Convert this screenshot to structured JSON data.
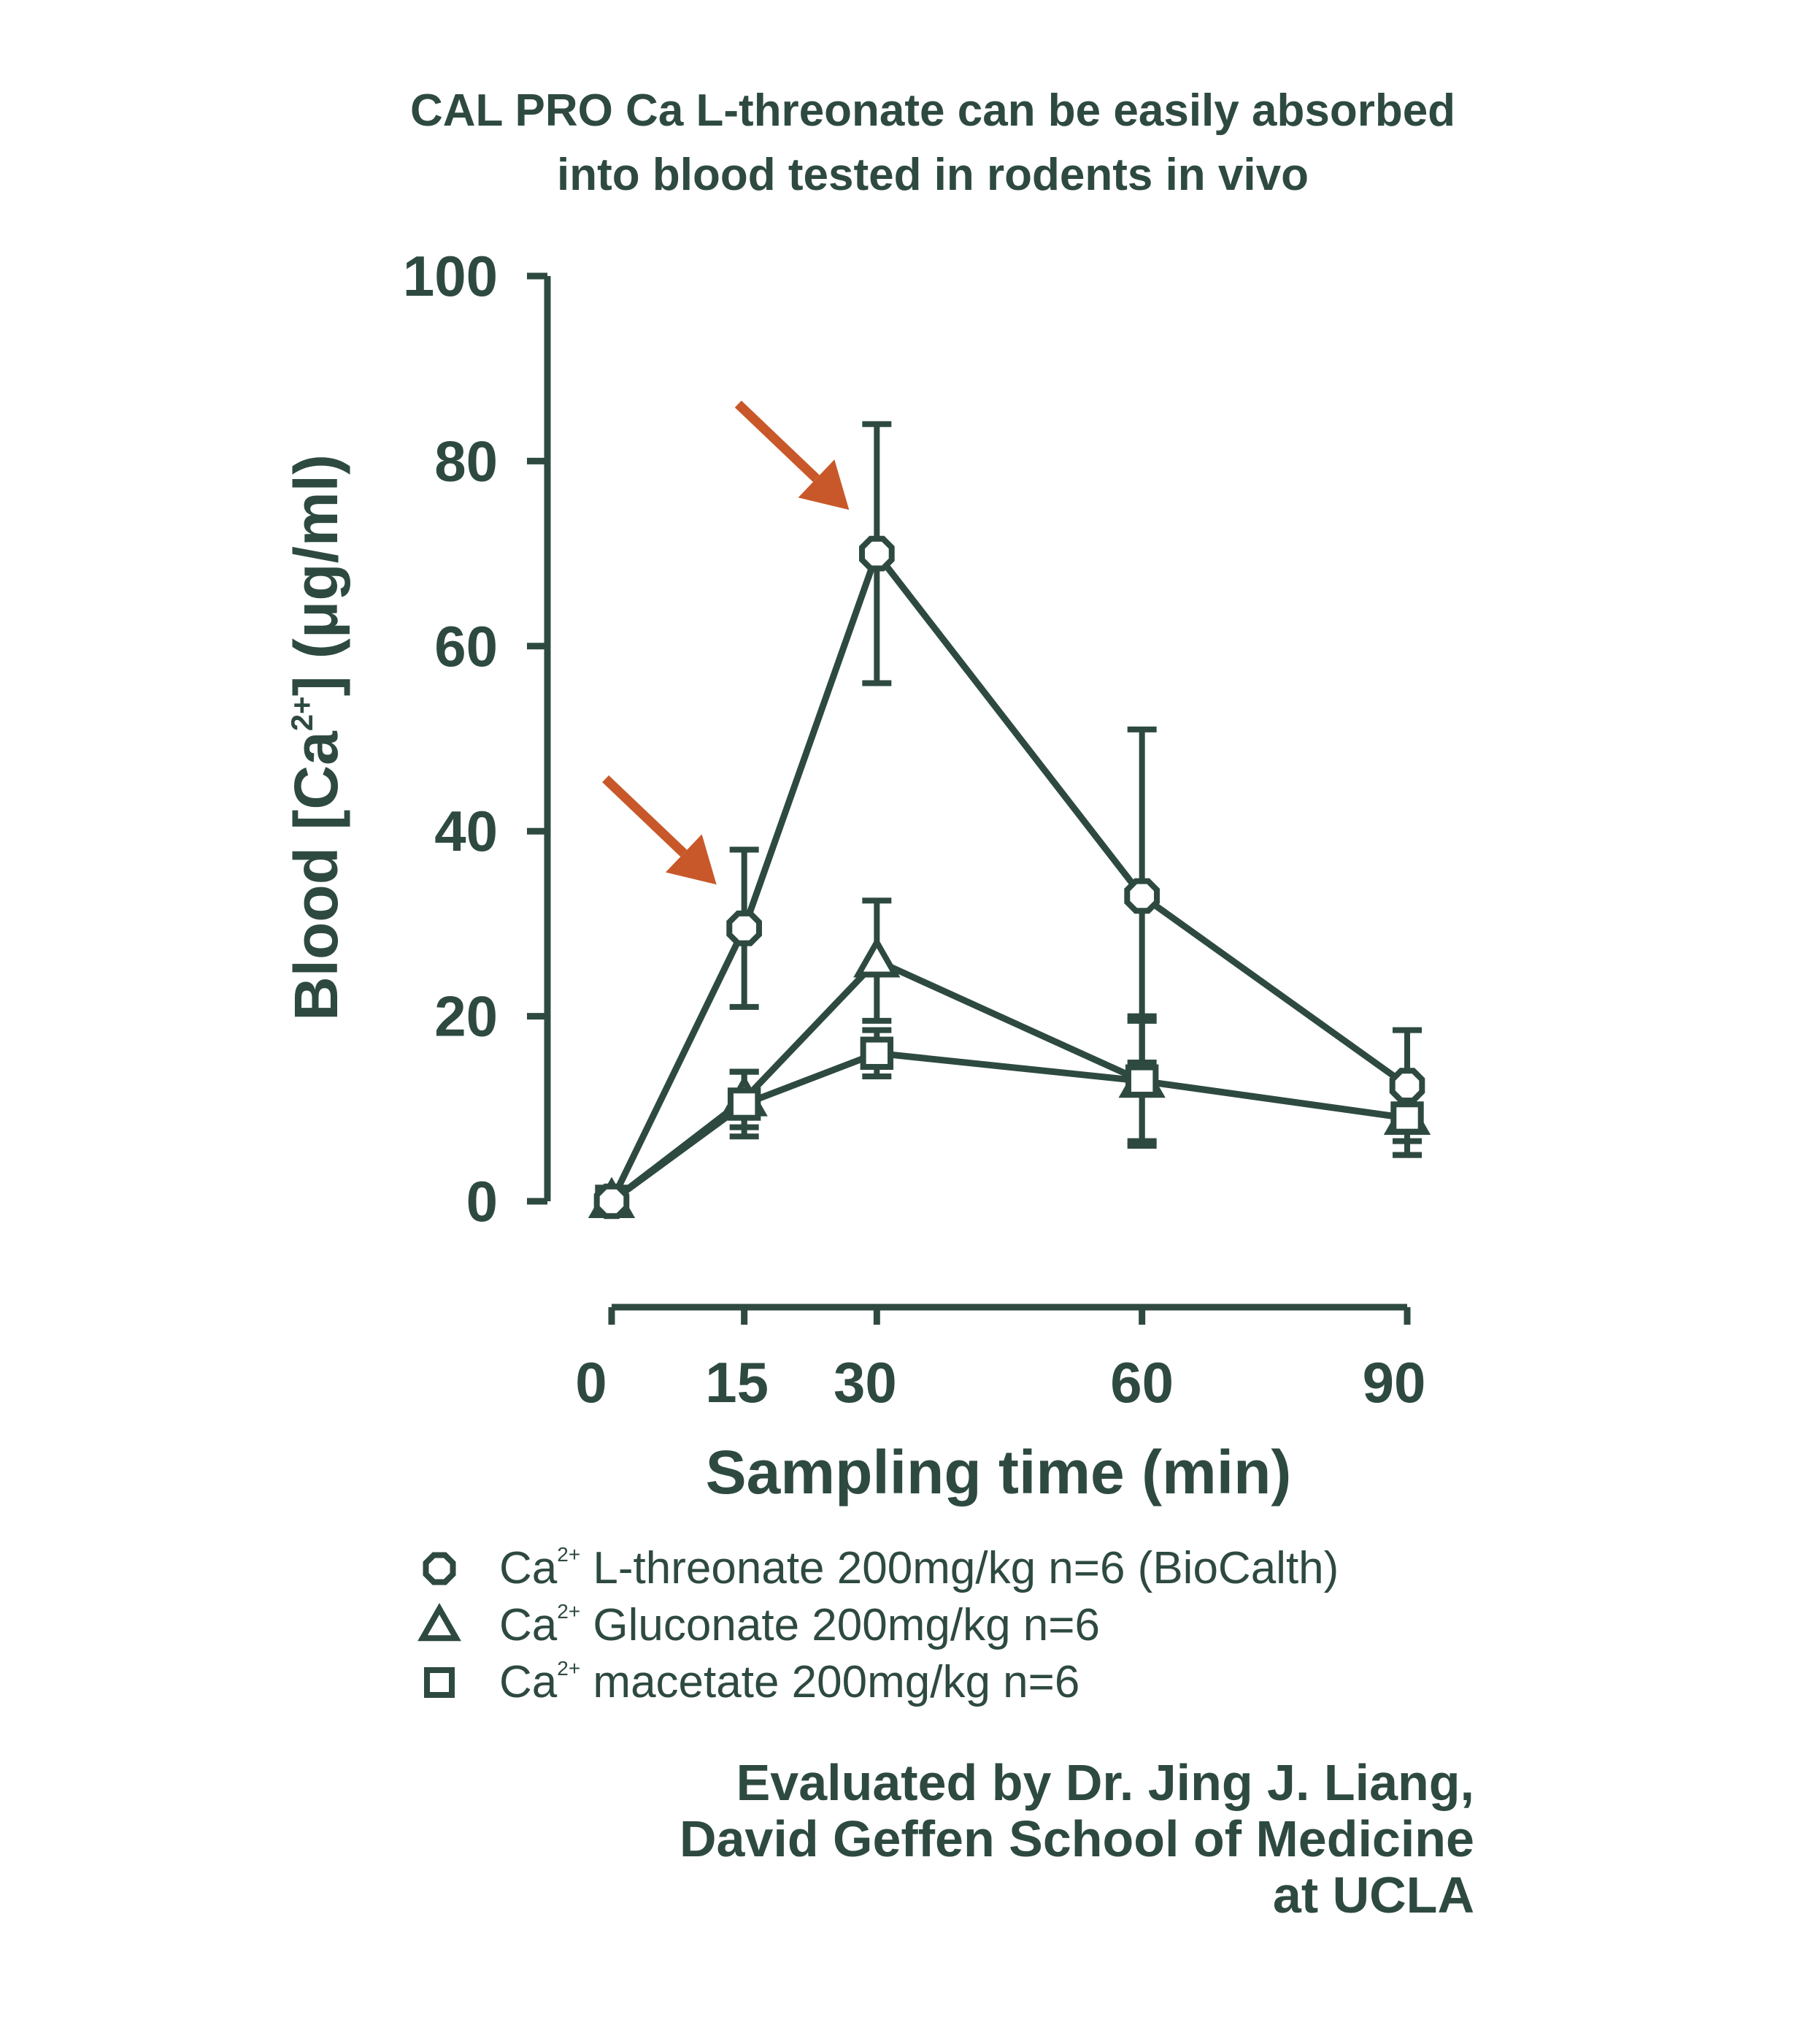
{
  "chart_data": {
    "type": "line",
    "title": [
      "CAL PRO Ca L-threonate can be easily absorbed",
      "into blood tested in rodents in vivo"
    ],
    "xlabel": "Sampling time (min)",
    "ylabel": {
      "pre": "Blood [Ca",
      "sup": "2+",
      "post": "] (μg/ml)"
    },
    "xticks": [
      0,
      15,
      30,
      60,
      90
    ],
    "yticks": [
      0,
      20,
      40,
      60,
      80,
      100
    ],
    "xlim": [
      0,
      90
    ],
    "ylim": [
      0,
      100
    ],
    "x": [
      0,
      15,
      30,
      60,
      90
    ],
    "series": [
      {
        "marker": "hexagon",
        "values": [
          0,
          29.5,
          70,
          33,
          12.5
        ],
        "err": [
          0,
          8.5,
          14,
          18,
          6
        ]
      },
      {
        "marker": "triangle",
        "values": [
          0,
          11,
          26,
          13,
          9
        ],
        "err": [
          0,
          3,
          6.5,
          7,
          4
        ]
      },
      {
        "marker": "square",
        "values": [
          0,
          10.5,
          16,
          13,
          9
        ],
        "err": [
          0,
          3.5,
          2.5,
          6.5,
          4
        ]
      }
    ],
    "annotations": [
      {
        "type": "arrow",
        "color": "#c8582a",
        "points_to": {
          "x": 15,
          "y": 29.5
        }
      },
      {
        "type": "arrow",
        "color": "#c8582a",
        "points_to": {
          "x": 30,
          "y": 70
        }
      }
    ],
    "legend": [
      {
        "marker": "hexagon",
        "pre": "Ca",
        "sup": "2+",
        "text": " L-threonate 200mg/kg n=6 (BioCalth)"
      },
      {
        "marker": "triangle",
        "pre": "Ca",
        "sup": "2+",
        "text": " Gluconate 200mg/kg n=6"
      },
      {
        "marker": "square",
        "pre": "Ca",
        "sup": "2+",
        "text": " macetate 200mg/kg n=6"
      }
    ],
    "legend_position": "bottom",
    "grid": false
  },
  "credit": [
    "Evaluated by Dr. Jing J. Liang,",
    "David Geffen School of Medicine",
    "at UCLA"
  ],
  "colors": {
    "ink": "#2e4a40",
    "arrow": "#c8582a",
    "background": "#ffffff"
  }
}
